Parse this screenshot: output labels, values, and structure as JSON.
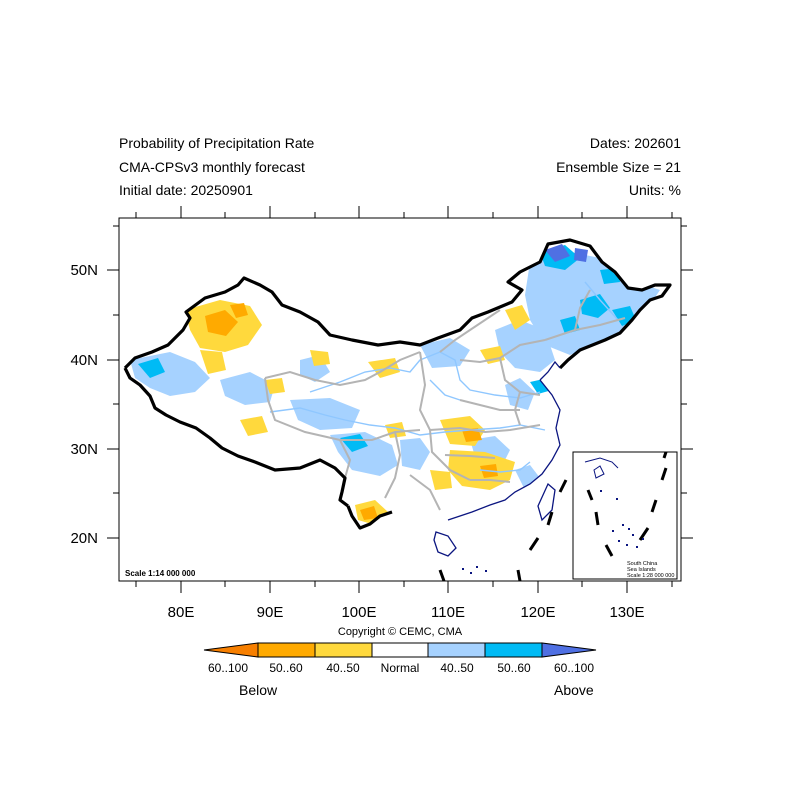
{
  "header": {
    "left": [
      "Probability of Precipitation Rate",
      "CMA-CPSv3 monthly forecast",
      "Initial date: 20250901"
    ],
    "right": [
      "Dates: 202601",
      "Ensemble Size = 21",
      "Units: %"
    ]
  },
  "map": {
    "projection": "lat-lon",
    "lon_range": [
      73,
      135
    ],
    "lat_range": [
      15,
      56
    ],
    "x_ticks": [
      "80E",
      "90E",
      "100E",
      "110E",
      "120E",
      "130E"
    ],
    "y_ticks": [
      "50N",
      "40N",
      "30N",
      "20N"
    ],
    "scale_main": "Scale 1:14 000 000",
    "inset_text": [
      "South China",
      "Sea Islands",
      "Scale 1:28 000 000"
    ]
  },
  "copyright": "Copyright © CEMC, CMA",
  "legend": {
    "below_label": "Below",
    "above_label": "Above",
    "bins": [
      {
        "label": "60..100",
        "color": "#f77f00"
      },
      {
        "label": "50..60",
        "color": "#ffaa00"
      },
      {
        "label": "40..50",
        "color": "#ffd93d"
      },
      {
        "label": "Normal",
        "color": "#ffffff"
      },
      {
        "label": "40..50",
        "color": "#a6d2ff"
      },
      {
        "label": "50..60",
        "color": "#00bbf5"
      },
      {
        "label": "60..100",
        "color": "#4f70e3"
      }
    ]
  },
  "colors": {
    "border": "#000000",
    "provinces": "#b4b4b4",
    "rivers": "#8fc7ff",
    "coast": "#0b1580"
  }
}
